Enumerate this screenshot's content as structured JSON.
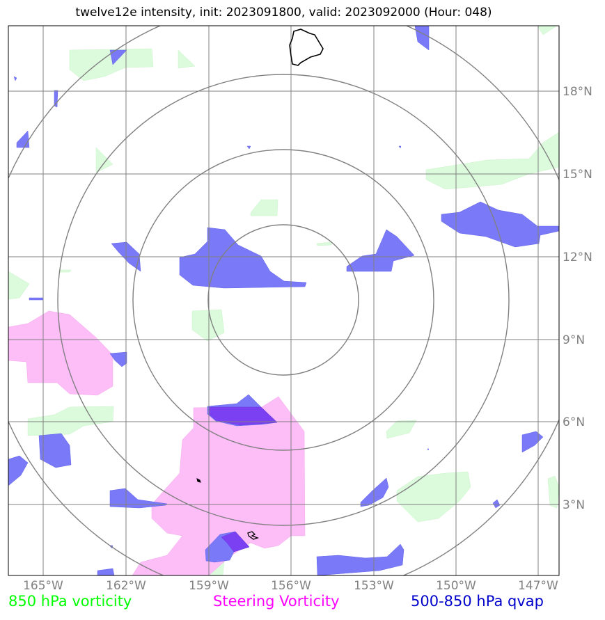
{
  "title": "twelve12e intensity, init: 2023091800, valid: 2023092000 (Hour: 048)",
  "lon_labels": [
    "165°W",
    "162°W",
    "159°W",
    "156°W",
    "153°W",
    "150°W",
    "147°W"
  ],
  "lat_labels": [
    "18°N",
    "15°N",
    "12°N",
    "9°N",
    "6°N",
    "3°N"
  ],
  "legend": {
    "green": "850 hPa vorticity",
    "magenta": "Steering Vorticity",
    "blue": "500-850 hPa qvap"
  },
  "colors": {
    "green_label": "#00ff00",
    "magenta_label": "#ff00ff",
    "blue_label": "#0000cc",
    "green_fill": "#dcfbdc",
    "magenta_fill": "#fdbdf7",
    "blue_fill": "#7a7af8",
    "blue_dark_fill": "#7b40f2",
    "grid": "#808080"
  }
}
